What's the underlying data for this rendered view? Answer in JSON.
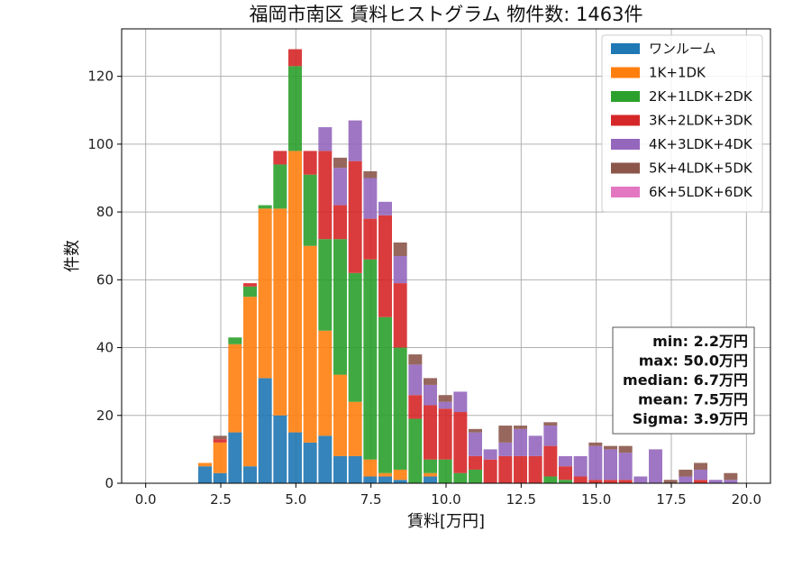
{
  "chart_data": {
    "type": "bar",
    "stacked": true,
    "title": "福岡市南区 賃料ヒストグラム 物件数: 1463件",
    "xlabel": "賃料[万円]",
    "ylabel": "件数",
    "xlim": [
      -0.8,
      20.8
    ],
    "ylim": [
      0,
      134
    ],
    "xticks": [
      "0.0",
      "2.5",
      "5.0",
      "7.5",
      "10.0",
      "12.5",
      "15.0",
      "17.5",
      "20.0"
    ],
    "yticks": [
      "0",
      "20",
      "40",
      "60",
      "80",
      "100",
      "120"
    ],
    "grid": true,
    "legend_position": "top-right",
    "bin_width": 0.5,
    "x": [
      2.0,
      2.5,
      3.0,
      3.5,
      4.0,
      4.5,
      5.0,
      5.5,
      6.0,
      6.5,
      7.0,
      7.5,
      8.0,
      8.5,
      9.0,
      9.5,
      10.0,
      10.5,
      11.0,
      11.5,
      12.0,
      12.5,
      13.0,
      13.5,
      14.0,
      14.5,
      15.0,
      15.5,
      16.0,
      16.5,
      17.0,
      17.5,
      18.0,
      18.5,
      19.0,
      19.5
    ],
    "series": [
      {
        "name": "ワンルーム",
        "color": "#1f77b4",
        "values": [
          5,
          3,
          15,
          5,
          31,
          20,
          15,
          12,
          14,
          8,
          8,
          2,
          2,
          1,
          0,
          2,
          0,
          0,
          0,
          0,
          0,
          0,
          0,
          0,
          0,
          0,
          0,
          0,
          0,
          0,
          0,
          0,
          0,
          0,
          0,
          0
        ]
      },
      {
        "name": "1K+1DK",
        "color": "#ff7f0e",
        "values": [
          1,
          9,
          26,
          50,
          50,
          61,
          83,
          58,
          31,
          24,
          16,
          5,
          1,
          3,
          0,
          1,
          0,
          0,
          0,
          0,
          0,
          0,
          0,
          0,
          0,
          0,
          0,
          0,
          0,
          0,
          0,
          0,
          0,
          0,
          0,
          0
        ]
      },
      {
        "name": "2K+1LDK+2DK",
        "color": "#2ca02c",
        "values": [
          0,
          0,
          2,
          3,
          1,
          13,
          25,
          21,
          27,
          40,
          38,
          59,
          46,
          36,
          19,
          4,
          7,
          3,
          4,
          0,
          0,
          0,
          0,
          2,
          1,
          0,
          0,
          0,
          0,
          0,
          0,
          0,
          0,
          0,
          0,
          0
        ]
      },
      {
        "name": "3K+2LDK+3DK",
        "color": "#d62728",
        "values": [
          0,
          1,
          0,
          1,
          0,
          4,
          5,
          7,
          26,
          10,
          33,
          12,
          30,
          19,
          7,
          16,
          15,
          18,
          4,
          7,
          8,
          8,
          8,
          9,
          4,
          2,
          1,
          1,
          1,
          0,
          0,
          0,
          0,
          1,
          0,
          0
        ]
      },
      {
        "name": "4K+3LDK+4DK",
        "color": "#9467bd",
        "values": [
          0,
          0,
          0,
          0,
          0,
          0,
          0,
          0,
          7,
          11,
          12,
          12,
          4,
          8,
          9,
          6,
          2,
          6,
          7,
          3,
          4,
          8,
          6,
          6,
          3,
          6,
          10,
          9,
          8,
          2,
          10,
          0,
          2,
          3,
          1,
          1
        ]
      },
      {
        "name": "5K+4LDK+5DK",
        "color": "#8c564b",
        "values": [
          0,
          1,
          0,
          0,
          0,
          0,
          0,
          0,
          0,
          3,
          0,
          2,
          0,
          4,
          3,
          2,
          2,
          0,
          1,
          0,
          5,
          1,
          0,
          1,
          0,
          0,
          1,
          1,
          2,
          0,
          0,
          1,
          2,
          2,
          0,
          2
        ]
      },
      {
        "name": "6K+5LDK+6DK",
        "color": "#e377c2",
        "values": [
          0,
          0,
          0,
          0,
          0,
          0,
          0,
          0,
          0,
          0,
          0,
          0,
          0,
          0,
          0,
          0,
          0,
          0,
          0,
          0,
          0,
          0,
          0,
          0,
          0,
          0,
          0,
          0,
          0,
          0,
          0,
          0,
          0,
          0,
          0,
          0
        ]
      }
    ],
    "stats": [
      "min: 2.2万円",
      "max: 50.0万円",
      "median: 6.7万円",
      "mean: 7.5万円",
      "Sigma: 3.9万円"
    ]
  }
}
